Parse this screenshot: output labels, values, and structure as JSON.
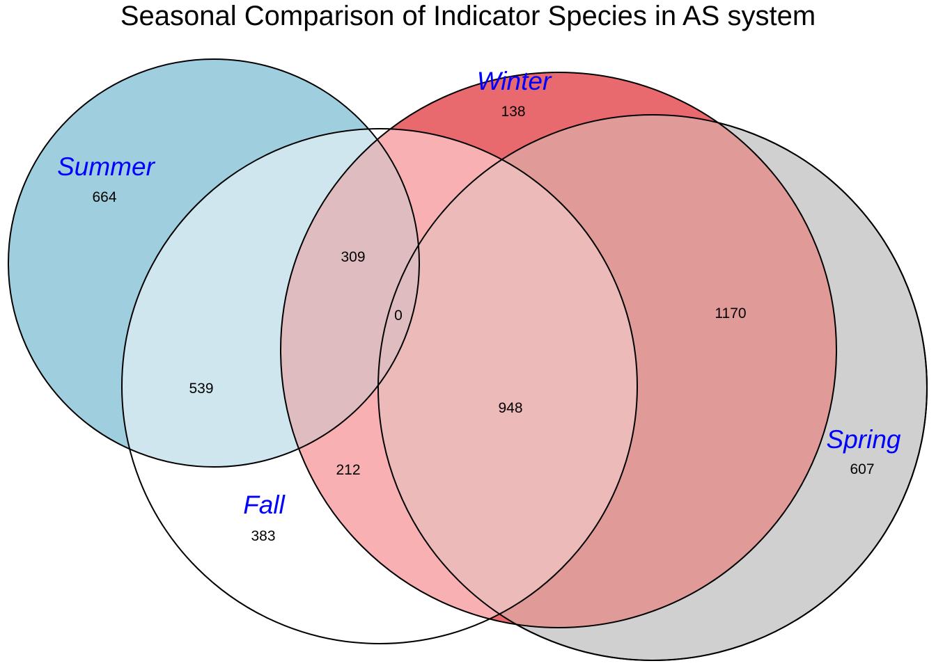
{
  "title": "Seasonal Comparison of Indicator Species in AS system",
  "colors": {
    "summer": "#9fcfdf",
    "fall": "#ffffff",
    "winter": "#e86a6e",
    "spring": "#d0d0d0",
    "label": "#0000ff"
  },
  "sets": {
    "summer": "Summer",
    "fall": "Fall",
    "winter": "Winter",
    "spring": "Spring"
  },
  "counts": {
    "summer_only": "664",
    "fall_only": "383",
    "winter_only": "138",
    "spring_only": "607",
    "summer_fall": "539",
    "summer_fall_winter": "309",
    "summer_fall_winter_spring": "0",
    "fall_winter": "212",
    "fall_winter_spring": "948",
    "winter_spring": "1170"
  }
}
